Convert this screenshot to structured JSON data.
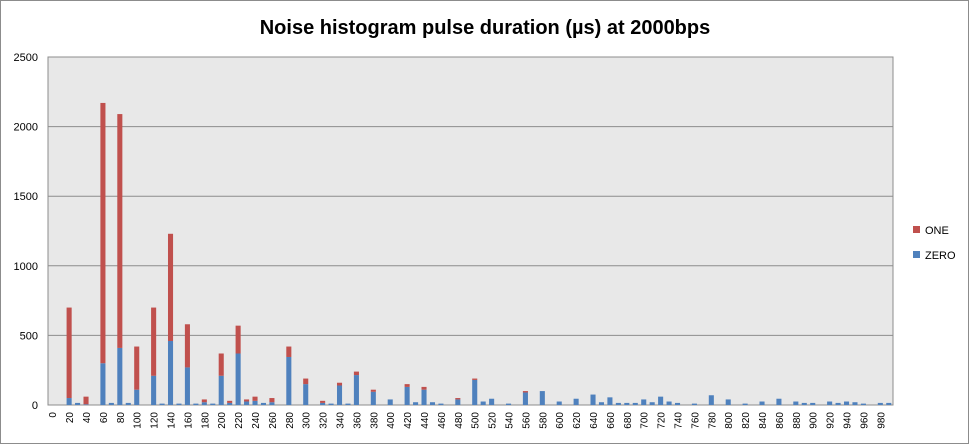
{
  "chart_data": {
    "type": "stacked_bar",
    "title": "Noise histogram pulse duration (µs) at 2000bps",
    "categories": [
      0,
      null,
      20,
      null,
      40,
      null,
      60,
      null,
      80,
      null,
      100,
      null,
      120,
      null,
      140,
      null,
      160,
      null,
      180,
      null,
      200,
      null,
      220,
      null,
      240,
      null,
      260,
      null,
      280,
      null,
      300,
      null,
      320,
      null,
      340,
      null,
      360,
      null,
      380,
      null,
      400,
      null,
      420,
      null,
      440,
      null,
      460,
      null,
      480,
      null,
      500,
      null,
      520,
      null,
      540,
      null,
      560,
      null,
      580,
      null,
      600,
      null,
      620,
      null,
      640,
      null,
      660,
      null,
      680,
      null,
      700,
      null,
      720,
      null,
      740,
      null,
      760,
      null,
      780,
      null,
      800,
      null,
      820,
      null,
      840,
      null,
      860,
      null,
      880,
      null,
      900,
      null,
      920,
      null,
      940,
      null,
      960,
      null,
      980,
      null
    ],
    "series": [
      {
        "name": "ZERO",
        "color": "#4f81bd",
        "values": [
          0,
          0,
          50,
          15,
          5,
          0,
          300,
          15,
          410,
          15,
          110,
          0,
          210,
          10,
          460,
          10,
          270,
          10,
          20,
          10,
          210,
          15,
          370,
          25,
          30,
          15,
          20,
          0,
          345,
          0,
          150,
          0,
          15,
          10,
          140,
          10,
          215,
          0,
          95,
          0,
          40,
          0,
          130,
          20,
          110,
          20,
          10,
          0,
          40,
          0,
          180,
          25,
          45,
          0,
          10,
          0,
          90,
          0,
          100,
          0,
          25,
          0,
          45,
          0,
          75,
          20,
          55,
          15,
          15,
          15,
          40,
          20,
          60,
          25,
          15,
          0,
          10,
          0,
          70,
          0,
          40,
          0,
          10,
          0,
          25,
          0,
          45,
          0,
          25,
          15,
          15,
          0,
          25,
          15,
          25,
          20,
          10,
          0,
          15,
          15
        ]
      },
      {
        "name": "ONE",
        "color": "#c0504d",
        "values": [
          0,
          0,
          650,
          0,
          55,
          0,
          1870,
          0,
          1680,
          0,
          310,
          0,
          490,
          0,
          770,
          0,
          310,
          0,
          20,
          0,
          160,
          15,
          200,
          15,
          30,
          0,
          30,
          0,
          75,
          0,
          40,
          0,
          15,
          0,
          20,
          0,
          25,
          0,
          15,
          0,
          0,
          0,
          20,
          0,
          20,
          0,
          0,
          0,
          10,
          0,
          10,
          0,
          0,
          0,
          0,
          0,
          10,
          0,
          0,
          0,
          0,
          0,
          0,
          0,
          0,
          0,
          0,
          0,
          0,
          0,
          0,
          0,
          0,
          0,
          0,
          0,
          0,
          0,
          0,
          0,
          0,
          0,
          0,
          0,
          0,
          0,
          0,
          0,
          0,
          0,
          0,
          0,
          0,
          0,
          0,
          0,
          0,
          0,
          0,
          0
        ]
      }
    ],
    "ylim": [
      0,
      2500
    ],
    "yticks": [
      0,
      500,
      1000,
      1500,
      2000,
      2500
    ],
    "grid": true,
    "legend": "right"
  }
}
